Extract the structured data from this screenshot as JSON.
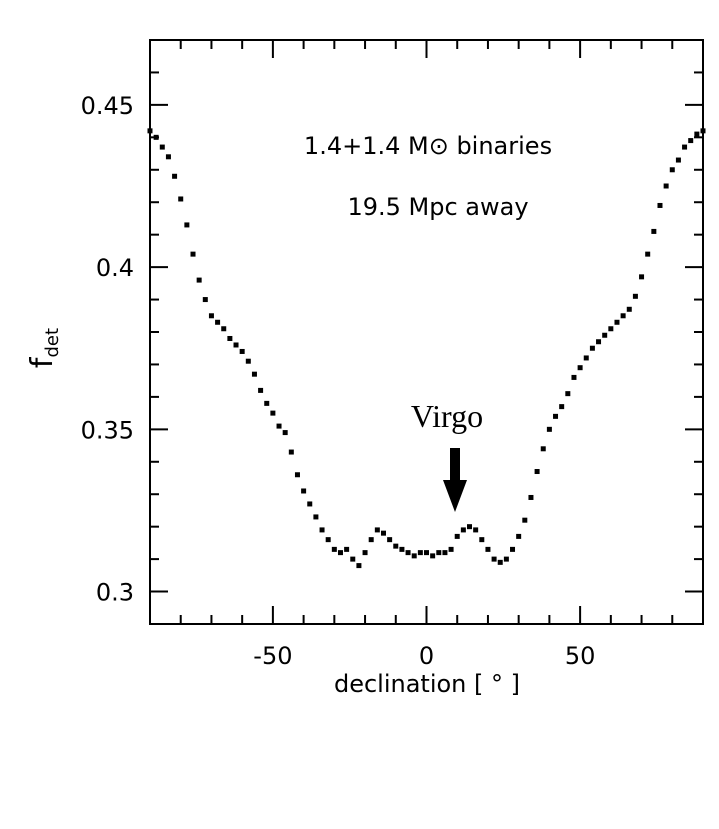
{
  "chart_data": {
    "type": "scatter",
    "xlabel": "declination [ ° ]",
    "ylabel": "f",
    "ylabel_sub": "det",
    "annotations": [
      "1.4+1.4 M⊙ binaries",
      "19.5 Mpc away",
      "Virgo"
    ],
    "x": [
      -90,
      -88,
      -86,
      -84,
      -82,
      -80,
      -78,
      -76,
      -74,
      -72,
      -70,
      -68,
      -66,
      -64,
      -62,
      -60,
      -58,
      -56,
      -54,
      -52,
      -50,
      -48,
      -46,
      -44,
      -42,
      -40,
      -38,
      -36,
      -34,
      -32,
      -30,
      -28,
      -26,
      -24,
      -22,
      -20,
      -18,
      -16,
      -14,
      -12,
      -10,
      -8,
      -6,
      -4,
      -2,
      0,
      2,
      4,
      6,
      8,
      10,
      12,
      14,
      16,
      18,
      20,
      22,
      24,
      26,
      28,
      30,
      32,
      34,
      36,
      38,
      40,
      42,
      44,
      46,
      48,
      50,
      52,
      54,
      56,
      58,
      60,
      62,
      64,
      66,
      68,
      70,
      72,
      74,
      76,
      78,
      80,
      82,
      84,
      86,
      88,
      90
    ],
    "values": [
      0.442,
      0.44,
      0.437,
      0.434,
      0.428,
      0.421,
      0.413,
      0.404,
      0.396,
      0.39,
      0.385,
      0.383,
      0.381,
      0.378,
      0.376,
      0.374,
      0.371,
      0.367,
      0.362,
      0.358,
      0.355,
      0.351,
      0.349,
      0.343,
      0.336,
      0.331,
      0.327,
      0.323,
      0.319,
      0.316,
      0.313,
      0.312,
      0.313,
      0.31,
      0.308,
      0.312,
      0.316,
      0.319,
      0.318,
      0.316,
      0.314,
      0.313,
      0.312,
      0.311,
      0.312,
      0.312,
      0.311,
      0.312,
      0.312,
      0.313,
      0.317,
      0.319,
      0.32,
      0.319,
      0.316,
      0.313,
      0.31,
      0.309,
      0.31,
      0.313,
      0.317,
      0.322,
      0.329,
      0.337,
      0.344,
      0.35,
      0.354,
      0.357,
      0.361,
      0.366,
      0.369,
      0.372,
      0.375,
      0.377,
      0.379,
      0.381,
      0.383,
      0.385,
      0.387,
      0.391,
      0.397,
      0.404,
      0.411,
      0.419,
      0.425,
      0.43,
      0.433,
      0.437,
      0.439,
      0.441,
      0.442
    ],
    "color": "#000000",
    "xlim": [
      -90,
      90
    ],
    "ylim": [
      0.29,
      0.47
    ],
    "xticks": [
      -50,
      0,
      50
    ],
    "yticks": [
      0.3,
      0.35,
      0.4,
      0.45
    ],
    "xminorticks": [
      -80,
      -70,
      -60,
      -40,
      -30,
      -20,
      -10,
      10,
      20,
      30,
      40,
      60,
      70,
      80
    ],
    "yminorticks": [
      0.29,
      0.31,
      0.32,
      0.33,
      0.34,
      0.36,
      0.37,
      0.38,
      0.39,
      0.41,
      0.42,
      0.43,
      0.44,
      0.46,
      0.47
    ]
  }
}
